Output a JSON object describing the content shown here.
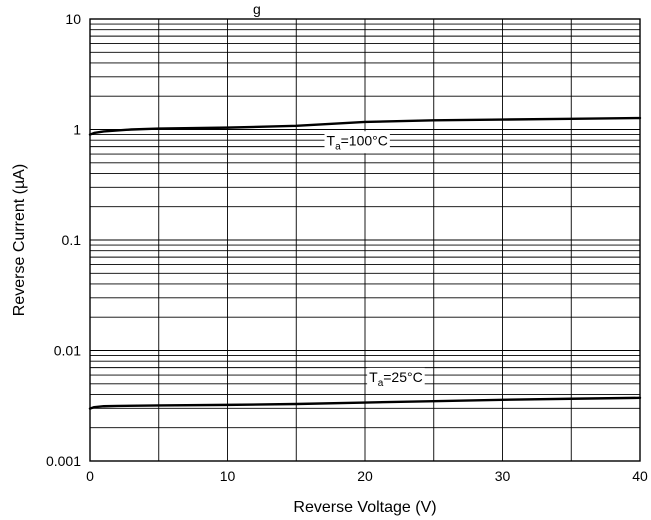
{
  "chart_data": {
    "type": "line",
    "title_fragment": "g",
    "xlabel": "Reverse Voltage (V)",
    "ylabel": "Reverse Current (µA)",
    "xlim": [
      0,
      40
    ],
    "ylim": [
      0.001,
      10
    ],
    "yscale": "log",
    "grid": true,
    "x_ticks": [
      0,
      10,
      20,
      30,
      40
    ],
    "x_tick_labels": [
      "0",
      "10",
      "20",
      "30",
      "40"
    ],
    "y_ticks": [
      0.001,
      0.01,
      0.1,
      1,
      10
    ],
    "y_tick_labels": [
      "0.001",
      "0.01",
      "0.1",
      "1",
      "10"
    ],
    "series": [
      {
        "label_main": "T",
        "label_sub": "a",
        "label_rest": "=100°C",
        "label_at": {
          "x": 17.2,
          "y": 0.72
        },
        "x": [
          0,
          0.3,
          1,
          2,
          3,
          5,
          10,
          15,
          20,
          25,
          30,
          35,
          40
        ],
        "y": [
          0.9,
          0.93,
          0.96,
          0.98,
          1.0,
          1.02,
          1.04,
          1.08,
          1.17,
          1.21,
          1.23,
          1.25,
          1.27
        ]
      },
      {
        "label_main": "T",
        "label_sub": "a",
        "label_rest": "=25°C",
        "label_at": {
          "x": 20.3,
          "y": 0.0052
        },
        "x": [
          0,
          0.3,
          1,
          2,
          5,
          10,
          15,
          20,
          25,
          30,
          35,
          40
        ],
        "y": [
          0.00298,
          0.00307,
          0.00313,
          0.00315,
          0.00318,
          0.00322,
          0.00328,
          0.00338,
          0.00348,
          0.00358,
          0.00366,
          0.00373
        ]
      }
    ]
  }
}
